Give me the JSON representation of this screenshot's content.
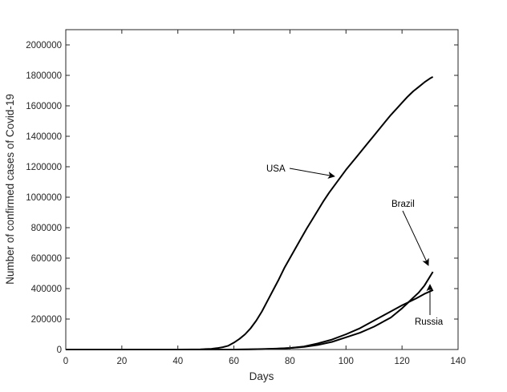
{
  "chart_data": {
    "type": "line",
    "xlabel": "Days",
    "ylabel": "Number of confirmed cases of Covid-19",
    "xlim": [
      0,
      140
    ],
    "ylim": [
      0,
      2100000
    ],
    "xticks": [
      0,
      20,
      40,
      60,
      80,
      100,
      120,
      140
    ],
    "yticks": [
      0,
      200000,
      400000,
      600000,
      800000,
      1000000,
      1200000,
      1400000,
      1600000,
      1800000,
      2000000
    ],
    "grid": false,
    "line_color": "#000000",
    "series": [
      {
        "x": [
          0,
          10,
          20,
          30,
          40,
          45,
          48,
          50,
          52,
          54,
          56,
          58,
          60,
          62,
          64,
          66,
          68,
          70,
          72,
          74,
          76,
          78,
          80,
          82,
          84,
          86,
          88,
          90,
          92,
          94,
          96,
          98,
          100,
          102,
          104,
          106,
          108,
          110,
          112,
          114,
          116,
          118,
          120,
          122,
          124,
          126,
          128,
          130,
          131
        ],
        "y": [
          0,
          0,
          0,
          0,
          100,
          500,
          1500,
          3000,
          5000,
          9000,
          15000,
          25000,
          45000,
          70000,
          100000,
          140000,
          190000,
          250000,
          320000,
          390000,
          460000,
          535000,
          600000,
          665000,
          730000,
          795000,
          855000,
          915000,
          975000,
          1030000,
          1080000,
          1130000,
          1180000,
          1225000,
          1270000,
          1315000,
          1360000,
          1405000,
          1450000,
          1495000,
          1540000,
          1580000,
          1620000,
          1660000,
          1695000,
          1725000,
          1755000,
          1780000,
          1790000
        ]
      },
      {
        "x": [
          0,
          20,
          40,
          50,
          60,
          65,
          70,
          75,
          80,
          85,
          90,
          95,
          100,
          105,
          110,
          112,
          114,
          116,
          118,
          120,
          122,
          124,
          126,
          128,
          130,
          131
        ],
        "y": [
          0,
          0,
          0,
          0,
          200,
          1000,
          3000,
          6000,
          10000,
          17000,
          30000,
          50000,
          80000,
          110000,
          150000,
          170000,
          190000,
          210000,
          240000,
          270000,
          305000,
          340000,
          375000,
          420000,
          480000,
          510000
        ]
      },
      {
        "x": [
          0,
          20,
          40,
          50,
          60,
          65,
          70,
          75,
          80,
          85,
          90,
          95,
          100,
          105,
          110,
          115,
          120,
          125,
          128,
          131
        ],
        "y": [
          0,
          0,
          0,
          0,
          100,
          500,
          2000,
          5000,
          10000,
          20000,
          40000,
          65000,
          100000,
          140000,
          190000,
          240000,
          290000,
          335000,
          365000,
          390000
        ]
      }
    ],
    "annotations": [
      {
        "text": "USA",
        "target": [
          96,
          1130000
        ]
      },
      {
        "text": "Brazil",
        "target": [
          129,
          530000
        ]
      },
      {
        "text": "Russia",
        "target": [
          129,
          420000
        ]
      }
    ]
  }
}
